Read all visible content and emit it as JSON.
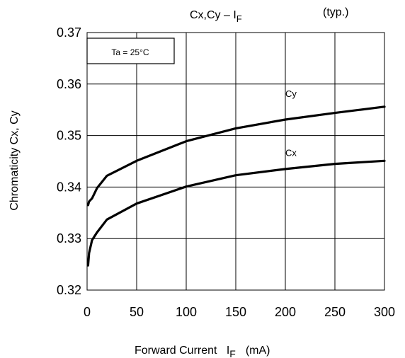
{
  "chart_data": {
    "type": "line",
    "title": "Cx,Cy – I",
    "title_subscript": "F",
    "note": "(typ.)",
    "condition": "Ta = 25°C",
    "xlabel": "Forward Current   I",
    "xlabel_subscript": "F",
    "xlabel_unit": "(mA)",
    "ylabel": "Chromaticity Cx, Cy",
    "xlim": [
      0,
      300
    ],
    "ylim": [
      0.32,
      0.37
    ],
    "xticks": [
      0,
      50,
      100,
      150,
      200,
      250,
      300
    ],
    "yticks": [
      0.32,
      0.33,
      0.34,
      0.35,
      0.36,
      0.37
    ],
    "xtick_labels": [
      "0",
      "50",
      "100",
      "150",
      "200",
      "250",
      "300"
    ],
    "ytick_labels": [
      "0.32",
      "0.33",
      "0.34",
      "0.35",
      "0.36",
      "0.37"
    ],
    "grid": true,
    "series": [
      {
        "name": "Cy",
        "x": [
          1,
          2,
          5,
          10,
          20,
          50,
          100,
          150,
          200,
          250,
          300
        ],
        "y": [
          0.3365,
          0.3372,
          0.3378,
          0.3398,
          0.3422,
          0.3451,
          0.3489,
          0.3514,
          0.3531,
          0.3544,
          0.3556
        ]
      },
      {
        "name": "Cx",
        "x": [
          1,
          2,
          5,
          10,
          20,
          50,
          100,
          150,
          200,
          250,
          300
        ],
        "y": [
          0.3248,
          0.3272,
          0.3297,
          0.3312,
          0.3337,
          0.3368,
          0.3401,
          0.3423,
          0.3435,
          0.3445,
          0.3451
        ]
      }
    ]
  }
}
